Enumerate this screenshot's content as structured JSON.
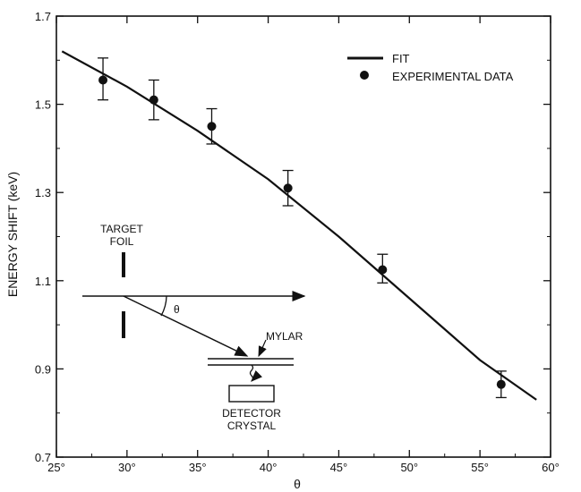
{
  "chart_data": {
    "type": "scatter",
    "xlabel": "θ",
    "ylabel": "ENERGY SHIFT (keV)",
    "xlim": [
      25,
      60
    ],
    "ylim": [
      0.7,
      1.7
    ],
    "x_ticks": [
      25,
      30,
      35,
      40,
      45,
      50,
      55,
      60
    ],
    "x_tick_labels": [
      "25°",
      "30°",
      "35°",
      "40°",
      "45°",
      "50°",
      "55°",
      "60°"
    ],
    "y_ticks": [
      0.7,
      0.9,
      1.1,
      1.3,
      1.5,
      1.7
    ],
    "y_tick_labels": [
      "0.7",
      "0.9",
      "1.1",
      "1.3",
      "1.5",
      "1.7"
    ],
    "legend_position": "top-right",
    "grid": false,
    "series": [
      {
        "name": "FIT",
        "kind": "line",
        "x": [
          25.4,
          30,
          35,
          40,
          45,
          50,
          55,
          59
        ],
        "y": [
          1.62,
          1.54,
          1.44,
          1.33,
          1.2,
          1.06,
          0.92,
          0.83
        ]
      },
      {
        "name": "EXPERIMENTAL DATA",
        "kind": "points",
        "x": [
          28.3,
          31.9,
          36.0,
          41.4,
          48.1,
          56.5
        ],
        "y": [
          1.555,
          1.51,
          1.45,
          1.31,
          1.125,
          0.865
        ],
        "err_low": [
          0.045,
          0.045,
          0.04,
          0.04,
          0.03,
          0.03
        ],
        "err_high": [
          0.05,
          0.045,
          0.04,
          0.04,
          0.035,
          0.03
        ]
      }
    ]
  },
  "inset": {
    "target_label_1": "TARGET",
    "target_label_2": "FOIL",
    "theta_label": "θ",
    "mylar_label": "MYLAR",
    "detector_label_1": "DETECTOR",
    "detector_label_2": "CRYSTAL"
  }
}
